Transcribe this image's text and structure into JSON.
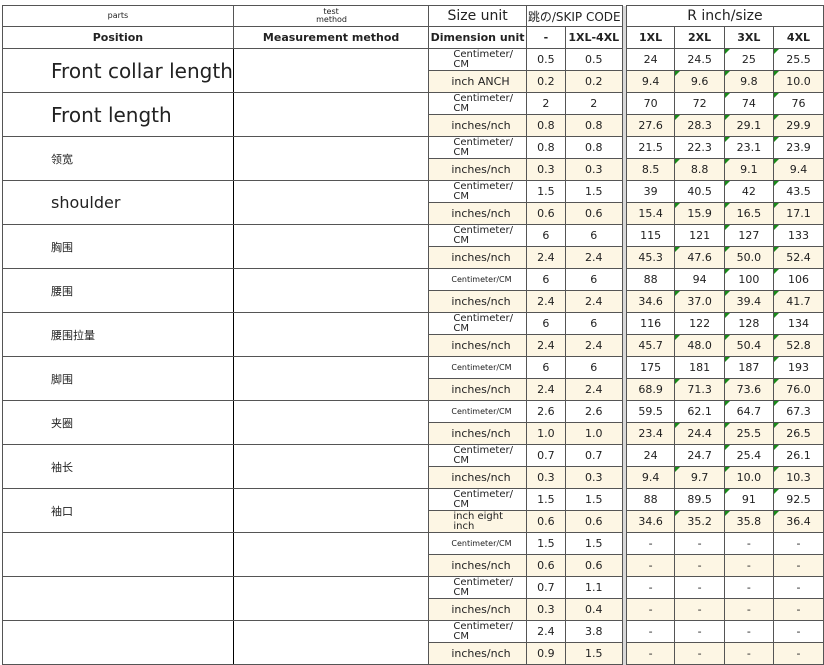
{
  "header": {
    "parts": "parts",
    "position": "Position",
    "test_method": "test method",
    "measurement_method": "Measurement method",
    "size_unit": "Size unit",
    "dimension_unit": "Dimension unit",
    "skip_code": "跳の/SKIP CODE",
    "r_inch_size": "R inch/size",
    "code_cols": [
      "-",
      "1XL-4XL"
    ],
    "sizes": [
      "1XL",
      "2XL",
      "3XL",
      "4XL"
    ]
  },
  "rows": [
    {
      "position": "Front collar length",
      "style": "big",
      "cm_unit": "Centimeter/ CM",
      "inch_unit": "inch ANCH",
      "cm": [
        "0.5",
        "0.5",
        "24",
        "24.5",
        "25",
        "25.5"
      ],
      "inch": [
        "0.2",
        "0.2",
        "9.4",
        "9.6",
        "9.8",
        "10.0"
      ]
    },
    {
      "position": "Front length",
      "style": "big",
      "cm_unit": "Centimeter/ CM",
      "inch_unit": "inches/nch",
      "cm": [
        "2",
        "2",
        "70",
        "72",
        "74",
        "76"
      ],
      "inch": [
        "0.8",
        "0.8",
        "27.6",
        "28.3",
        "29.1",
        "29.9"
      ]
    },
    {
      "position": "领宽",
      "style": "",
      "cm_unit": "Centimeter/ CM",
      "inch_unit": "inches/nch",
      "cm": [
        "0.8",
        "0.8",
        "21.5",
        "22.3",
        "23.1",
        "23.9"
      ],
      "inch": [
        "0.3",
        "0.3",
        "8.5",
        "8.8",
        "9.1",
        "9.4"
      ]
    },
    {
      "position": "shoulder",
      "style": "mid",
      "cm_unit": "Centimeter/ CM",
      "inch_unit": "inches/nch",
      "cm": [
        "1.5",
        "1.5",
        "39",
        "40.5",
        "42",
        "43.5"
      ],
      "inch": [
        "0.6",
        "0.6",
        "15.4",
        "15.9",
        "16.5",
        "17.1"
      ]
    },
    {
      "position": "胸围",
      "style": "",
      "cm_unit": "Centimeter/ CM",
      "inch_unit": "inches/nch",
      "cm": [
        "6",
        "6",
        "115",
        "121",
        "127",
        "133"
      ],
      "inch": [
        "2.4",
        "2.4",
        "45.3",
        "47.6",
        "50.0",
        "52.4"
      ]
    },
    {
      "position": "腰围",
      "style": "",
      "cm_unit": "Centimeter/CM",
      "inch_unit": "inches/nch",
      "cm": [
        "6",
        "6",
        "88",
        "94",
        "100",
        "106"
      ],
      "inch": [
        "2.4",
        "2.4",
        "34.6",
        "37.0",
        "39.4",
        "41.7"
      ]
    },
    {
      "position": "腰围拉量",
      "style": "",
      "cm_unit": "Centimeter/ CM",
      "inch_unit": "inches/nch",
      "cm": [
        "6",
        "6",
        "116",
        "122",
        "128",
        "134"
      ],
      "inch": [
        "2.4",
        "2.4",
        "45.7",
        "48.0",
        "50.4",
        "52.8"
      ]
    },
    {
      "position": "脚围",
      "style": "",
      "cm_unit": "Centimeter/CM",
      "inch_unit": "inches/nch",
      "cm": [
        "6",
        "6",
        "175",
        "181",
        "187",
        "193"
      ],
      "inch": [
        "2.4",
        "2.4",
        "68.9",
        "71.3",
        "73.6",
        "76.0"
      ]
    },
    {
      "position": "夹圈",
      "style": "",
      "cm_unit": "Centimeter/CM",
      "inch_unit": "inches/nch",
      "cm": [
        "2.6",
        "2.6",
        "59.5",
        "62.1",
        "64.7",
        "67.3"
      ],
      "inch": [
        "1.0",
        "1.0",
        "23.4",
        "24.4",
        "25.5",
        "26.5"
      ]
    },
    {
      "position": "袖长",
      "style": "",
      "cm_unit": "Centimeter/ CM",
      "inch_unit": "inches/nch",
      "cm": [
        "0.7",
        "0.7",
        "24",
        "24.7",
        "25.4",
        "26.1"
      ],
      "inch": [
        "0.3",
        "0.3",
        "9.4",
        "9.7",
        "10.0",
        "10.3"
      ]
    },
    {
      "position": "袖口",
      "style": "",
      "cm_unit": "Centimeter/ CM",
      "inch_unit": "inch eight inch",
      "cm": [
        "1.5",
        "1.5",
        "88",
        "89.5",
        "91",
        "92.5"
      ],
      "inch": [
        "0.6",
        "0.6",
        "34.6",
        "35.2",
        "35.8",
        "36.4"
      ]
    },
    {
      "position": "",
      "style": "",
      "cm_unit": "Centimeter/CM",
      "inch_unit": "inches/nch",
      "cm": [
        "1.5",
        "1.5",
        "-",
        "-",
        "-",
        "-"
      ],
      "inch": [
        "0.6",
        "0.6",
        "-",
        "-",
        "-",
        "-"
      ]
    },
    {
      "position": "",
      "style": "",
      "cm_unit": "Centimeter/ CM",
      "inch_unit": "inches/nch",
      "cm": [
        "0.7",
        "1.1",
        "-",
        "-",
        "-",
        "-"
      ],
      "inch": [
        "0.3",
        "0.4",
        "-",
        "-",
        "-",
        "-"
      ]
    },
    {
      "position": "",
      "style": "",
      "cm_unit": "Centimeter/ CM",
      "inch_unit": "inches/nch",
      "cm": [
        "2.4",
        "3.8",
        "-",
        "-",
        "-",
        "-"
      ],
      "inch": [
        "0.9",
        "1.5",
        "-",
        "-",
        "-",
        "-"
      ]
    }
  ],
  "colors": {
    "inch_row_bg": "#fdf6e4",
    "marker": "#1a8a1a"
  }
}
